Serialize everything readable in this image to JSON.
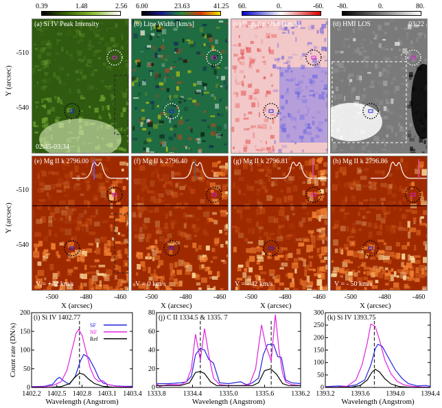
{
  "colorbars": [
    {
      "id": "a",
      "min": "0.39",
      "mid": "1.48",
      "max": "2.56",
      "colors": [
        "#000000",
        "#3a6b00",
        "#8fbf3a",
        "#ffffff"
      ]
    },
    {
      "id": "b",
      "min": "6.00",
      "mid": "23.63",
      "max": "41.25",
      "colors": [
        "#000000",
        "#1a1a8c",
        "#2a8a3a",
        "#d63a0a",
        "#f0e000"
      ]
    },
    {
      "id": "c",
      "min": "60.",
      "mid": "0.",
      "max": "-60.",
      "colors": [
        "#0000cc",
        "#ffffff",
        "#dd0000"
      ]
    },
    {
      "id": "d",
      "min": "-80.",
      "mid": "0.",
      "max": "80.",
      "colors": [
        "#000000",
        "#808080",
        "#ffffff"
      ]
    }
  ],
  "panels_top": [
    {
      "label": "(a) Si IV  Peak Intensity",
      "corner": "",
      "bottom": "02:45-03:34",
      "bg": "#2f5a10",
      "tint": "#6da030"
    },
    {
      "label": "(b) Line Width [km/s]",
      "corner": "",
      "bottom": "",
      "bg": "#1f6b42",
      "tint": "#d0401a"
    },
    {
      "label": "(c) Doppler Shift [km/s]",
      "corner": "",
      "bottom": "",
      "bg": "#f3c8c8",
      "tint": "#6b6bef"
    },
    {
      "label": "(d) HMI LOS",
      "corner": "03:22",
      "bottom": "",
      "bg": "#7a7a7a",
      "tint": "#ffffff"
    }
  ],
  "panels_mid": [
    {
      "label": "(e) Mg II k 2796.00",
      "bottom": "V = +42 km/s",
      "marker_color": "#5a5aff"
    },
    {
      "label": "(f) Mg II k 2796.40",
      "bottom": "V = 0 km/s",
      "marker_color": "#606060"
    },
    {
      "label": "(g) Mg II k 2796.81",
      "bottom": "V = - 42 km/s",
      "marker_color": "#e0509a"
    },
    {
      "label": "(h) Mg II k 2796.86",
      "bottom": "V = - 50 km/s",
      "marker_color": "#e0509a"
    }
  ],
  "image_axes": {
    "ylabel": "Y (arcsec)",
    "xlabel": "X (arcsec)",
    "yticks": [
      "-510",
      "-540"
    ],
    "xticks": [
      "-500",
      "-480",
      "-460"
    ]
  },
  "chart_data": [
    {
      "type": "line",
      "title": "(i) Si IV  1402.77",
      "xlabel": "Wavelength (Angstrom)",
      "ylabel": "Count rate (DN/s)",
      "xlim": [
        1402.2,
        1403.4
      ],
      "ylim": [
        0,
        200
      ],
      "xticks": [
        "1402.2",
        "1402.5",
        "1402.8",
        "1403.1",
        "1403.4"
      ],
      "yticks": [
        "0",
        "50",
        "100",
        "150",
        "200"
      ],
      "ref_line": 1402.77,
      "legend": {
        "placement": "top-right",
        "entries": [
          {
            "name": "SF",
            "color": "#2020e0"
          },
          {
            "name": "NF",
            "color": "#e020e0"
          },
          {
            "name": "Ref",
            "color": "#000000"
          }
        ]
      },
      "series": [
        {
          "name": "SF",
          "color": "#2020e0",
          "x": [
            1402.2,
            1402.35,
            1402.45,
            1402.5,
            1402.53,
            1402.58,
            1402.65,
            1402.72,
            1402.78,
            1402.82,
            1402.88,
            1402.95,
            1403.0,
            1403.05,
            1403.1,
            1403.2,
            1403.3,
            1403.4
          ],
          "y": [
            2,
            3,
            8,
            22,
            27,
            18,
            8,
            30,
            70,
            88,
            80,
            50,
            25,
            12,
            8,
            4,
            3,
            3
          ]
        },
        {
          "name": "NF",
          "color": "#e020e0",
          "x": [
            1402.2,
            1402.35,
            1402.45,
            1402.55,
            1402.62,
            1402.68,
            1402.73,
            1402.76,
            1402.8,
            1402.85,
            1402.9,
            1402.95,
            1403.0,
            1403.05,
            1403.1,
            1403.15,
            1403.2,
            1403.3,
            1403.4
          ],
          "y": [
            1,
            2,
            5,
            15,
            45,
            100,
            145,
            155,
            140,
            95,
            50,
            25,
            16,
            18,
            8,
            6,
            3,
            2,
            1
          ]
        },
        {
          "name": "Ref",
          "color": "#000000",
          "x": [
            1402.2,
            1402.4,
            1402.55,
            1402.65,
            1402.72,
            1402.77,
            1402.82,
            1402.88,
            1402.95,
            1403.05,
            1403.2,
            1403.4
          ],
          "y": [
            0,
            0,
            2,
            10,
            28,
            38,
            35,
            22,
            10,
            3,
            0,
            0
          ]
        }
      ]
    },
    {
      "type": "line",
      "title": "(j) C II  1334.5 & 1335.  7",
      "xlabel": "Wavelength (Angstrom)",
      "ylabel": "",
      "xlim": [
        1333.8,
        1336.2
      ],
      "ylim": [
        0,
        80
      ],
      "xticks": [
        "1333.8",
        "1334.4",
        "1335.0",
        "1335.6",
        "1336.2"
      ],
      "yticks": [
        "0",
        "20",
        "40",
        "60",
        "80"
      ],
      "ref_lines": [
        1334.53,
        1335.71
      ],
      "series": [
        {
          "name": "SF",
          "color": "#2020e0",
          "x": [
            1333.8,
            1334.0,
            1334.2,
            1334.3,
            1334.38,
            1334.45,
            1334.53,
            1334.6,
            1334.67,
            1334.75,
            1334.85,
            1335.0,
            1335.2,
            1335.3,
            1335.4,
            1335.5,
            1335.58,
            1335.65,
            1335.75,
            1335.82,
            1335.88,
            1335.95,
            1336.05,
            1336.2
          ],
          "y": [
            4,
            4,
            5,
            6,
            12,
            35,
            42,
            40,
            30,
            26,
            5,
            4,
            6,
            3,
            5,
            10,
            35,
            46,
            46,
            33,
            32,
            8,
            5,
            4
          ]
        },
        {
          "name": "NF",
          "color": "#e020e0",
          "x": [
            1333.8,
            1333.85,
            1334.0,
            1334.2,
            1334.3,
            1334.38,
            1334.45,
            1334.53,
            1334.6,
            1334.67,
            1334.75,
            1334.85,
            1335.0,
            1335.2,
            1335.35,
            1335.45,
            1335.55,
            1335.62,
            1335.71,
            1335.78,
            1335.84,
            1335.9,
            1335.95,
            1336.05,
            1336.2
          ],
          "y": [
            4,
            1,
            3,
            3,
            6,
            20,
            57,
            29,
            63,
            35,
            10,
            3,
            2,
            2,
            3,
            20,
            67,
            45,
            28,
            78,
            40,
            15,
            6,
            3,
            2
          ]
        },
        {
          "name": "Ref",
          "color": "#000000",
          "x": [
            1333.8,
            1334.2,
            1334.35,
            1334.45,
            1334.53,
            1334.6,
            1334.7,
            1334.8,
            1335.0,
            1335.4,
            1335.5,
            1335.6,
            1335.7,
            1335.8,
            1335.9,
            1336.0,
            1336.2
          ],
          "y": [
            2,
            2,
            5,
            16,
            17,
            15,
            6,
            2,
            2,
            2,
            5,
            18,
            20,
            14,
            4,
            2,
            2
          ]
        }
      ]
    },
    {
      "type": "line",
      "title": "(k) Si IV  1393.75",
      "xlabel": "Wavelength (Angstrom)",
      "ylabel": "",
      "xlim": [
        1393.2,
        1394.4
      ],
      "ylim": [
        0,
        300
      ],
      "xticks": [
        "1393.2",
        "1393.6",
        "1394.0",
        "1394.4"
      ],
      "yticks": [
        "0",
        "50",
        "100",
        "150",
        "200",
        "250",
        "300"
      ],
      "ref_line": 1393.76,
      "series": [
        {
          "name": "SF",
          "color": "#2020e0",
          "x": [
            1393.2,
            1393.35,
            1393.45,
            1393.55,
            1393.65,
            1393.72,
            1393.77,
            1393.8,
            1393.85,
            1393.92,
            1394.0,
            1394.08,
            1394.15,
            1394.25,
            1394.35,
            1394.4
          ],
          "y": [
            3,
            6,
            4,
            10,
            30,
            90,
            155,
            173,
            165,
            120,
            70,
            35,
            15,
            6,
            8,
            4
          ]
        },
        {
          "name": "NF",
          "color": "#e020e0",
          "x": [
            1393.2,
            1393.35,
            1393.45,
            1393.55,
            1393.62,
            1393.68,
            1393.72,
            1393.77,
            1393.82,
            1393.88,
            1393.95,
            1394.02,
            1394.1,
            1394.2,
            1394.3,
            1394.4
          ],
          "y": [
            1,
            2,
            5,
            30,
            90,
            180,
            255,
            245,
            190,
            110,
            55,
            25,
            10,
            4,
            2,
            1
          ]
        },
        {
          "name": "Ref",
          "color": "#000000",
          "x": [
            1393.2,
            1393.5,
            1393.6,
            1393.68,
            1393.73,
            1393.77,
            1393.82,
            1393.88,
            1393.95,
            1394.05,
            1394.2,
            1394.4
          ],
          "y": [
            0,
            1,
            8,
            30,
            60,
            73,
            62,
            35,
            14,
            3,
            0,
            0
          ]
        }
      ]
    }
  ]
}
